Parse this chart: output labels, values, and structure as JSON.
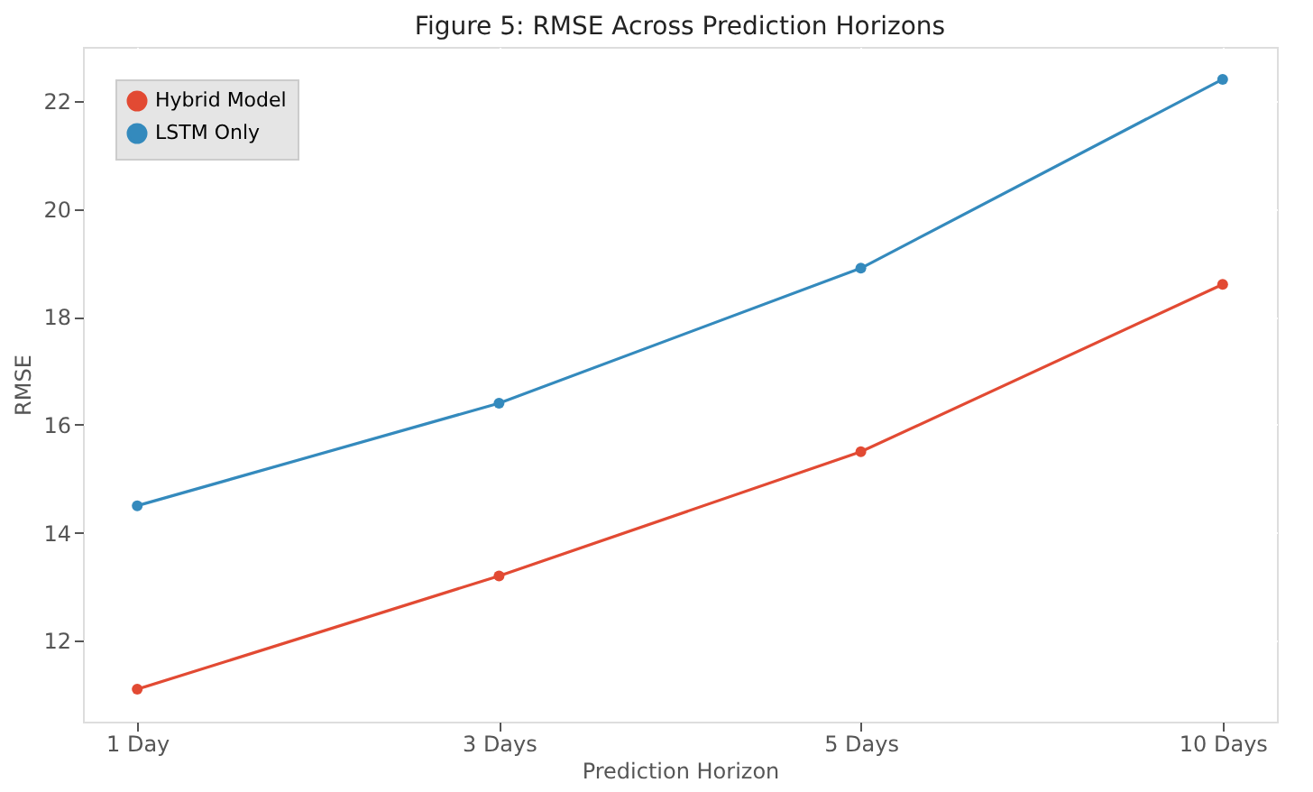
{
  "chart_data": {
    "type": "line",
    "title": "Figure 5: RMSE Across Prediction Horizons",
    "xlabel": "Prediction Horizon",
    "ylabel": "RMSE",
    "categories": [
      "1 Day",
      "3 Days",
      "5 Days",
      "10 Days"
    ],
    "series": [
      {
        "name": "Hybrid Model",
        "color": "#e24a33",
        "values": [
          11.1,
          13.2,
          15.5,
          18.6
        ]
      },
      {
        "name": "LSTM Only",
        "color": "#348abd",
        "values": [
          14.5,
          16.4,
          18.9,
          22.4
        ]
      }
    ],
    "ylim": [
      10.5,
      23.0
    ],
    "yticks": [
      12,
      14,
      16,
      18,
      20,
      22
    ],
    "grid": true,
    "legend": "top left",
    "marker": "circle",
    "line_style": "solid"
  }
}
